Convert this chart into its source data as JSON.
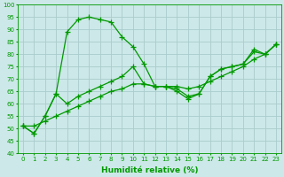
{
  "xlabel": "Humidité relative (%)",
  "background_color": "#cce8e8",
  "grid_color": "#aacccc",
  "line_color": "#009900",
  "x": [
    0,
    1,
    2,
    3,
    4,
    5,
    6,
    7,
    8,
    9,
    10,
    11,
    12,
    13,
    14,
    15,
    16,
    17,
    18,
    19,
    20,
    21,
    22,
    23
  ],
  "y_line1": [
    51,
    48,
    55,
    64,
    89,
    94,
    95,
    94,
    93,
    87,
    83,
    76,
    67,
    67,
    66,
    63,
    64,
    71,
    74,
    75,
    76,
    82,
    80,
    84
  ],
  "y_line2": [
    51,
    48,
    55,
    64,
    60,
    63,
    65,
    67,
    69,
    71,
    75,
    68,
    67,
    67,
    65,
    62,
    64,
    71,
    74,
    75,
    76,
    81,
    80,
    84
  ],
  "y_line3": [
    51,
    51,
    53,
    55,
    57,
    59,
    61,
    63,
    65,
    66,
    68,
    68,
    67,
    67,
    67,
    66,
    67,
    69,
    71,
    73,
    75,
    78,
    80,
    84
  ],
  "ylim": [
    40,
    100
  ],
  "xlim": [
    -0.5,
    23.5
  ],
  "yticks": [
    40,
    45,
    50,
    55,
    60,
    65,
    70,
    75,
    80,
    85,
    90,
    95,
    100
  ],
  "xticks": [
    0,
    1,
    2,
    3,
    4,
    5,
    6,
    7,
    8,
    9,
    10,
    11,
    12,
    13,
    14,
    15,
    16,
    17,
    18,
    19,
    20,
    21,
    22,
    23
  ],
  "tick_fontsize": 5.0,
  "xlabel_fontsize": 6.5
}
